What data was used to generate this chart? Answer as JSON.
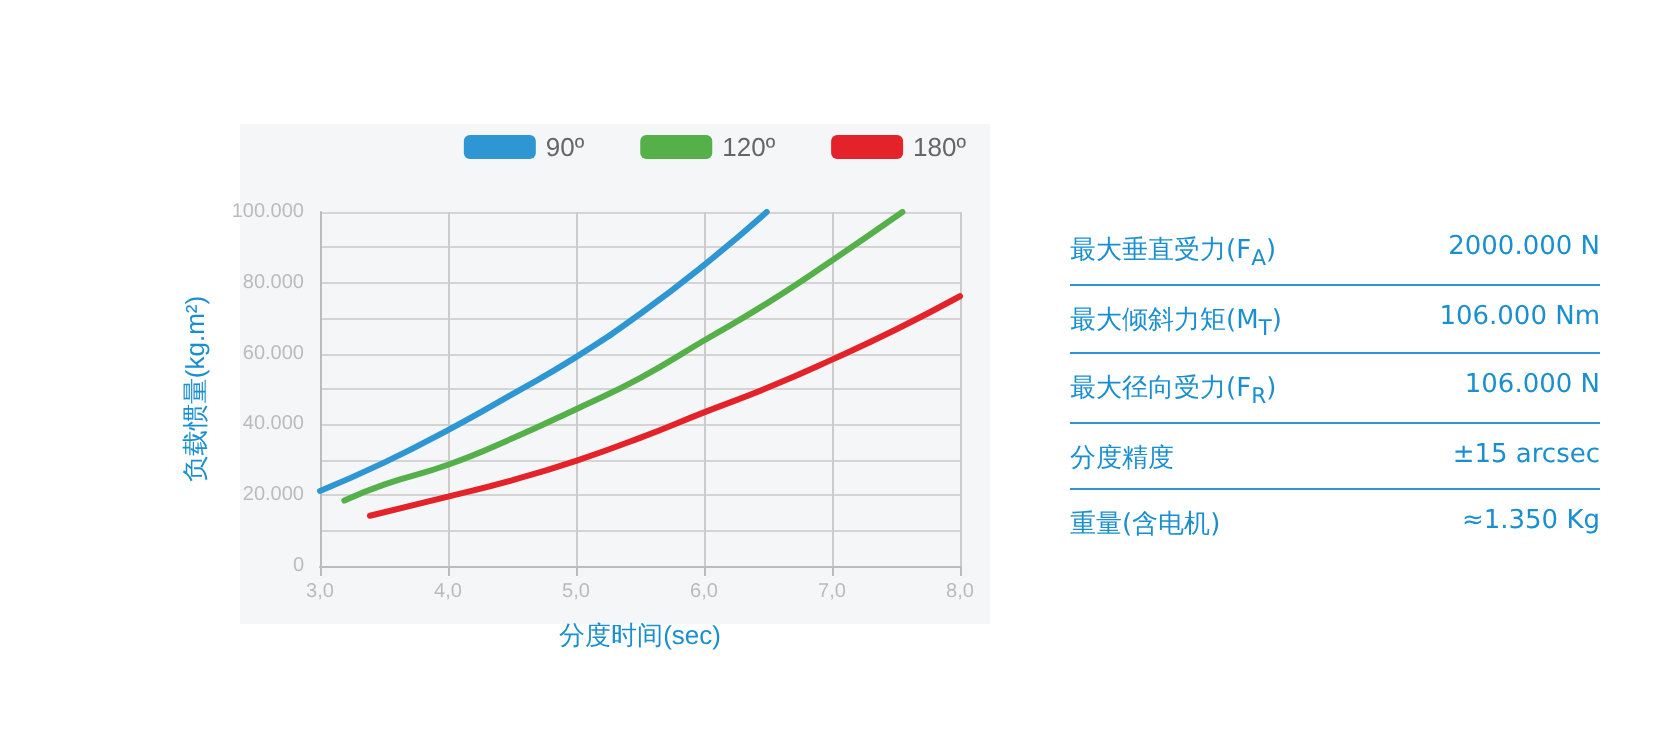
{
  "chart_data": [
    {
      "type": "line",
      "xlabel": "分度时间(sec)",
      "ylabel": "负载惯量(kg.m²)",
      "legend": "top right",
      "grid": true,
      "marker": "none",
      "line_style": "solid",
      "xlim": [
        3,
        8
      ],
      "xticks": [
        {
          "value": 3,
          "label": "3,0"
        },
        {
          "value": 4,
          "label": "4,0"
        },
        {
          "value": 5,
          "label": "5,0"
        },
        {
          "value": 6,
          "label": "6,0"
        },
        {
          "value": 7,
          "label": "7,0"
        },
        {
          "value": 8,
          "label": "8,0"
        }
      ],
      "ylim": [
        0,
        100000
      ],
      "yticks": [
        {
          "value": 0,
          "label": "0"
        },
        {
          "value": 10000,
          "label": null
        },
        {
          "value": 20000,
          "label": "20.000"
        },
        {
          "value": 30000,
          "label": null
        },
        {
          "value": 40000,
          "label": "40.000"
        },
        {
          "value": 50000,
          "label": null
        },
        {
          "value": 60000,
          "label": "60.000"
        },
        {
          "value": 70000,
          "label": null
        },
        {
          "value": 80000,
          "label": "80.000"
        },
        {
          "value": 90000,
          "label": null
        },
        {
          "value": 100000,
          "label": "100.000"
        }
      ],
      "series": [
        {
          "name": "90º",
          "color": "#2e97d3",
          "x": [
            3.0,
            3.5,
            4.0,
            4.5,
            5.0,
            5.5,
            6.0,
            6.49
          ],
          "values": [
            21200,
            29200,
            38400,
            48500,
            59000,
            71200,
            85000,
            100000
          ]
        },
        {
          "name": "120º",
          "color": "#55b04a",
          "x": [
            3.19,
            3.5,
            4.0,
            4.5,
            5.0,
            5.5,
            6.0,
            6.5,
            7.0,
            7.55
          ],
          "values": [
            18500,
            23000,
            28600,
            36000,
            44300,
            53100,
            63700,
            74400,
            86300,
            100000
          ]
        },
        {
          "name": "180º",
          "color": "#e32229",
          "x": [
            3.39,
            4.0,
            4.5,
            5.0,
            5.5,
            6.0,
            6.5,
            7.0,
            7.5,
            8.0
          ],
          "values": [
            14200,
            19600,
            24200,
            29700,
            36200,
            43400,
            50400,
            58300,
            66800,
            76200
          ]
        }
      ]
    },
    {
      "type": "other",
      "annotations": [
        "最大垂直受力(F$_{A}$)",
        "2000.000 N",
        "最大倾斜力矩(M$_{T}$)",
        "106.000 Nm",
        "最大径向受力(F$_{R}$)",
        "106.000 N",
        "分度精度",
        "±15 arcsec",
        "重量(含电机)",
        "≈1.350 Kg"
      ]
    }
  ]
}
